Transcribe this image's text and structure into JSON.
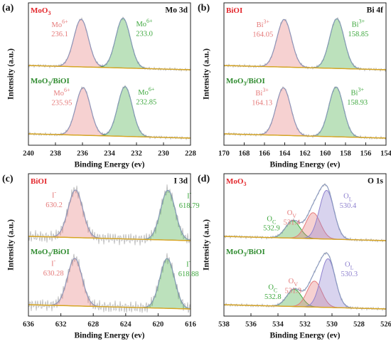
{
  "chart_data": [
    {
      "type": "xps",
      "panel": "(a)",
      "title": "Mo 3d",
      "xlabel": "Binding Energy (ev)",
      "ylabel": "Intensity (a.u.)",
      "xlim": [
        240,
        228
      ],
      "xticks": [
        240,
        238,
        236,
        234,
        232,
        230,
        228
      ],
      "spectra": [
        {
          "name_parts": [
            "MoO",
            "3"
          ],
          "color": "#e3262b",
          "peaks": [
            {
              "ion": "Mo",
              "sup": "6+",
              "value": 236.1,
              "color": "#e57a7a"
            },
            {
              "ion": "Mo",
              "sup": "6+",
              "value": 233.0,
              "value_label": "233.0",
              "color": "#3fa83f"
            }
          ]
        },
        {
          "name_parts": [
            "MoO",
            "3",
            "/BiOI"
          ],
          "color": "#2e8b2e",
          "peaks": [
            {
              "ion": "Mo",
              "sup": "6+",
              "value": 235.95,
              "color": "#e57a7a"
            },
            {
              "ion": "Mo",
              "sup": "6+",
              "value": 232.85,
              "color": "#3fa83f"
            }
          ]
        }
      ]
    },
    {
      "type": "xps",
      "panel": "(b)",
      "title": "Bi 4f",
      "xlabel": "Binding Energy (ev)",
      "ylabel": "Intensity (a.u.)",
      "xlim": [
        170,
        154
      ],
      "xticks": [
        170,
        168,
        166,
        164,
        162,
        160,
        158,
        156,
        154
      ],
      "spectra": [
        {
          "name_parts": [
            "BiOI"
          ],
          "color": "#e3262b",
          "peaks": [
            {
              "ion": "Bi",
              "sup": "3+",
              "value": 164.05,
              "color": "#e57a7a"
            },
            {
              "ion": "Bi",
              "sup": "3+",
              "value": 158.85,
              "color": "#3fa83f"
            }
          ]
        },
        {
          "name_parts": [
            "MoO",
            "3",
            "/BiOI"
          ],
          "color": "#2e8b2e",
          "peaks": [
            {
              "ion": "Bi",
              "sup": "3+",
              "value": 164.13,
              "color": "#e57a7a"
            },
            {
              "ion": "Bi",
              "sup": "3+",
              "value": 158.93,
              "color": "#3fa83f"
            }
          ]
        }
      ]
    },
    {
      "type": "xps",
      "panel": "(c)",
      "title": "I 3d",
      "xlabel": "Binding Energy (ev)",
      "ylabel": "Intensity (a.u.)",
      "xlim": [
        636,
        616
      ],
      "xticks": [
        636,
        632,
        628,
        624,
        620,
        616
      ],
      "spectra": [
        {
          "name_parts": [
            "BiOI"
          ],
          "color": "#e3262b",
          "peaks": [
            {
              "ion": "I",
              "sup": "-",
              "value": 630.2,
              "color": "#e57a7a"
            },
            {
              "ion": "I",
              "sup": "-",
              "value": 618.79,
              "color": "#3fa83f"
            }
          ]
        },
        {
          "name_parts": [
            "MoO",
            "3",
            "/BiOI"
          ],
          "color": "#2e8b2e",
          "peaks": [
            {
              "ion": "I",
              "sup": "-",
              "value": 630.28,
              "color": "#e57a7a"
            },
            {
              "ion": "I",
              "sup": "-",
              "value": 618.88,
              "color": "#3fa83f"
            }
          ]
        }
      ]
    },
    {
      "type": "xps",
      "panel": "(d)",
      "title": "O 1s",
      "xlabel": "Binding Energy (ev)",
      "ylabel": "Intensity (a.u.)",
      "xlim": [
        538,
        526
      ],
      "xticks": [
        538,
        536,
        534,
        532,
        530,
        528,
        526
      ],
      "spectra": [
        {
          "name_parts": [
            "MoO",
            "3"
          ],
          "color": "#e3262b",
          "peaks": [
            {
              "ion": "O",
              "sub": "C",
              "value": 532.9,
              "color": "#3fa83f"
            },
            {
              "ion": "O",
              "sub": "V",
              "value": 531.4,
              "color": "#e57a7a"
            },
            {
              "ion": "O",
              "sub": "L",
              "value": 530.4,
              "color": "#8f82cf"
            }
          ]
        },
        {
          "name_parts": [
            "MoO",
            "3",
            "/BiOI"
          ],
          "color": "#2e8b2e",
          "peaks": [
            {
              "ion": "O",
              "sub": "C",
              "value": 532.8,
              "color": "#3fa83f"
            },
            {
              "ion": "O",
              "sub": "V",
              "value": 531.3,
              "color": "#e57a7a"
            },
            {
              "ion": "O",
              "sub": "L",
              "value": 530.3,
              "color": "#8f82cf"
            }
          ]
        }
      ]
    }
  ]
}
